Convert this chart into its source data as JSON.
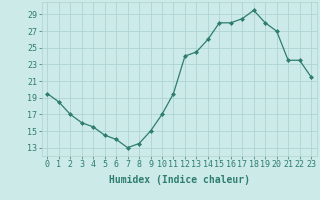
{
  "x": [
    0,
    1,
    2,
    3,
    4,
    5,
    6,
    7,
    8,
    9,
    10,
    11,
    12,
    13,
    14,
    15,
    16,
    17,
    18,
    19,
    20,
    21,
    22,
    23
  ],
  "y": [
    19.5,
    18.5,
    17,
    16,
    15.5,
    14.5,
    14,
    13,
    13.5,
    15,
    17,
    19.5,
    24,
    24.5,
    26,
    28,
    28,
    28.5,
    29.5,
    28,
    27,
    23.5,
    23.5,
    21.5
  ],
  "line_color": "#2e7d6e",
  "marker": "D",
  "marker_size": 2.0,
  "bg_color": "#cceae8",
  "grid_color": "#aed4d1",
  "xlabel": "Humidex (Indice chaleur)",
  "xlabel_fontsize": 7,
  "tick_fontsize": 6,
  "yticks": [
    13,
    15,
    17,
    19,
    21,
    23,
    25,
    27,
    29
  ],
  "xticks": [
    0,
    1,
    2,
    3,
    4,
    5,
    6,
    7,
    8,
    9,
    10,
    11,
    12,
    13,
    14,
    15,
    16,
    17,
    18,
    19,
    20,
    21,
    22,
    23
  ],
  "ylim": [
    12.0,
    30.5
  ],
  "xlim": [
    -0.5,
    23.5
  ]
}
